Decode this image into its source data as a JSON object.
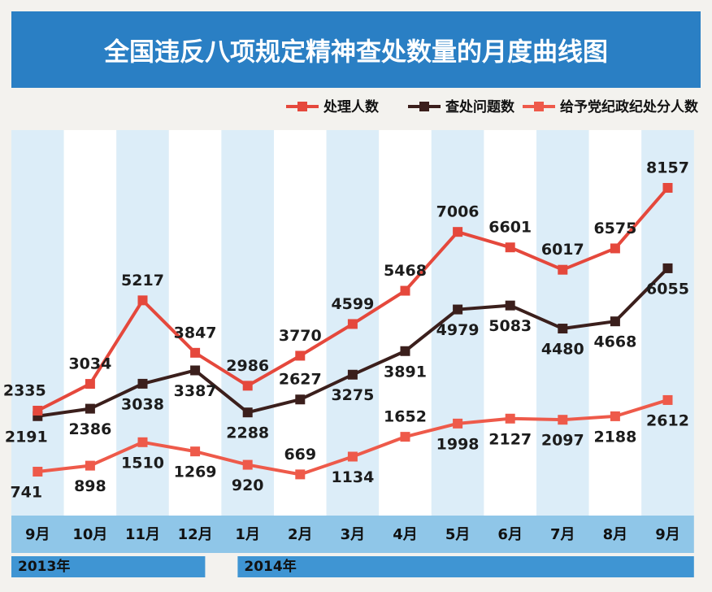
{
  "chart_data": {
    "type": "line",
    "title": "全国违反八项规定精神查处数量的月度曲线图",
    "categories": [
      "9月",
      "10月",
      "11月",
      "12月",
      "1月",
      "2月",
      "3月",
      "4月",
      "5月",
      "6月",
      "7月",
      "8月",
      "9月"
    ],
    "years": [
      {
        "label": "2013年",
        "start_index": 0,
        "end_index": 3
      },
      {
        "label": "2014年",
        "start_index": 4,
        "end_index": 12
      }
    ],
    "series": [
      {
        "name": "处理人数",
        "color": "#e5483c",
        "values": [
          2335,
          3034,
          5217,
          3847,
          2986,
          3770,
          4599,
          5468,
          7006,
          6601,
          6017,
          6575,
          8157
        ]
      },
      {
        "name": "查处问题数",
        "color": "#3b1f1c",
        "values": [
          2191,
          2386,
          3038,
          3387,
          2288,
          2627,
          3275,
          3891,
          4979,
          5083,
          4480,
          4668,
          6055
        ]
      },
      {
        "name": "给予党纪政纪处分人数",
        "color": "#ee5a4a",
        "values": [
          741,
          898,
          1510,
          1269,
          920,
          669,
          1134,
          1652,
          1998,
          2127,
          2097,
          2188,
          2612
        ]
      }
    ],
    "legend_position": "top-right",
    "grid": false,
    "colors": {
      "title_bar": "#2a7fc4",
      "axis_bar": "#8fc6e8",
      "year_bar": "#3f95d3",
      "column_light": "#dcedf8",
      "column_white": "#ffffff"
    }
  }
}
